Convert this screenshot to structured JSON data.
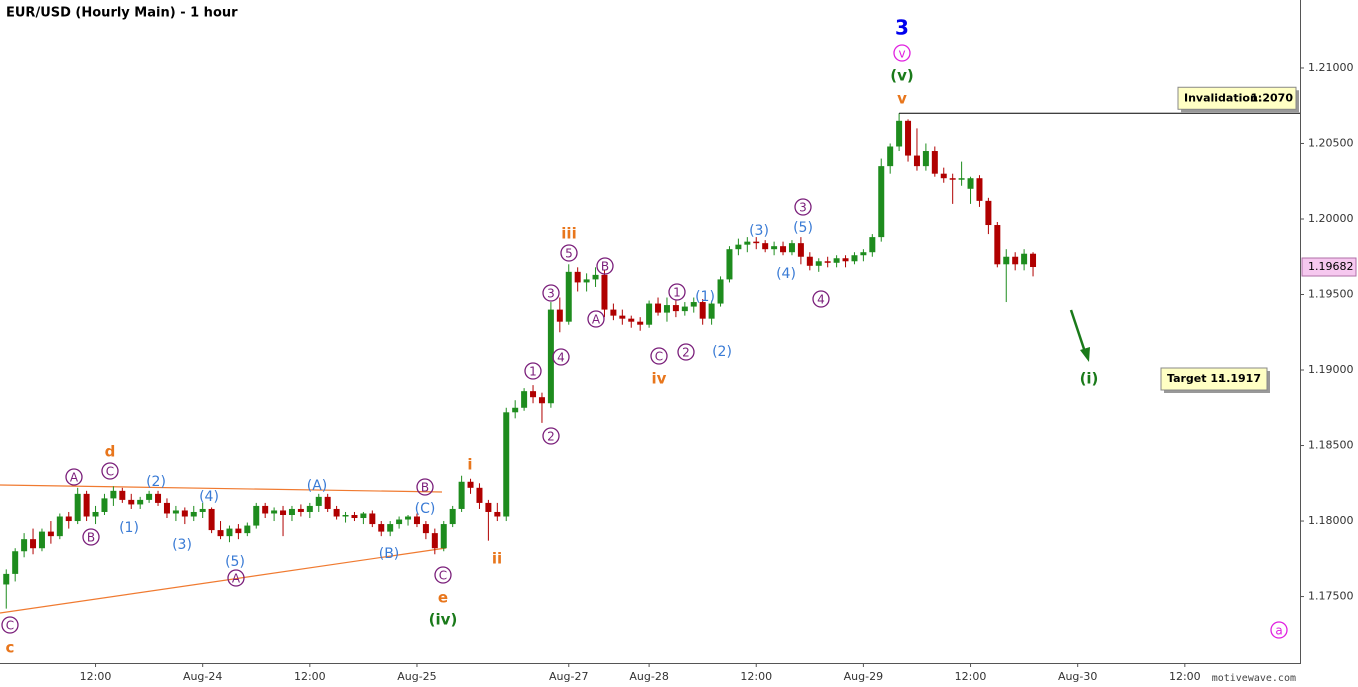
{
  "chart_data": {
    "type": "candlestick",
    "title": "EUR/USD (Hourly Main) - 1 hour",
    "watermark": "motivewave.com",
    "up_color": "#1e8c1e",
    "down_color": "#b00000",
    "open": [
      1.1758,
      1.1765,
      1.178,
      1.1788,
      1.1782,
      1.1793,
      1.179,
      1.1803,
      1.18,
      1.1818,
      1.1803,
      1.1806,
      1.1815,
      1.182,
      1.1814,
      1.1811,
      1.1814,
      1.1818,
      1.1812,
      1.1805,
      1.1807,
      1.1803,
      1.1806,
      1.1808,
      1.1794,
      1.179,
      1.1795,
      1.1792,
      1.1797,
      1.181,
      1.1805,
      1.1807,
      1.1804,
      1.1808,
      1.1806,
      1.181,
      1.1816,
      1.1808,
      1.1803,
      1.1804,
      1.1802,
      1.1805,
      1.1798,
      1.1793,
      1.1798,
      1.1801,
      1.1803,
      1.1798,
      1.1792,
      1.1782,
      1.1798,
      1.1808,
      1.1826,
      1.1822,
      1.1812,
      1.1806,
      1.1803,
      1.1872,
      1.1875,
      1.1886,
      1.1882,
      1.1878,
      1.194,
      1.1932,
      1.1965,
      1.1958,
      1.196,
      1.1963,
      1.194,
      1.1936,
      1.1934,
      1.1932,
      1.193,
      1.1944,
      1.1938,
      1.1943,
      1.1939,
      1.1942,
      1.1945,
      1.1934,
      1.1944,
      1.196,
      1.198,
      1.1983,
      1.1985,
      1.1984,
      1.198,
      1.1982,
      1.1978,
      1.1984,
      1.1975,
      1.1969,
      1.1972,
      1.1971,
      1.1974,
      1.1972,
      1.1976,
      1.1978,
      1.1988,
      1.2035,
      1.2048,
      1.2065,
      1.2042,
      1.2035,
      1.2045,
      1.203,
      1.2027,
      1.2026,
      1.202,
      1.2027,
      1.2012,
      1.1996,
      1.197,
      1.1975,
      1.197,
      1.1977
    ],
    "high": [
      1.1768,
      1.1782,
      1.1792,
      1.1795,
      1.1795,
      1.18,
      1.1805,
      1.1806,
      1.1822,
      1.182,
      1.181,
      1.1818,
      1.1823,
      1.1822,
      1.1818,
      1.1816,
      1.182,
      1.182,
      1.1815,
      1.181,
      1.1809,
      1.181,
      1.1812,
      1.1809,
      1.18,
      1.1797,
      1.1798,
      1.1799,
      1.1812,
      1.1812,
      1.1809,
      1.181,
      1.181,
      1.1811,
      1.1812,
      1.1818,
      1.1818,
      1.181,
      1.1806,
      1.1806,
      1.1806,
      1.1807,
      1.18,
      1.18,
      1.1803,
      1.1804,
      1.1805,
      1.18,
      1.1795,
      1.18,
      1.181,
      1.183,
      1.1828,
      1.1825,
      1.1814,
      1.1812,
      1.1875,
      1.188,
      1.1888,
      1.189,
      1.1885,
      1.1945,
      1.1948,
      1.197,
      1.1968,
      1.1964,
      1.1968,
      1.1966,
      1.1944,
      1.194,
      1.1936,
      1.1935,
      1.1946,
      1.1948,
      1.1948,
      1.1946,
      1.1945,
      1.1948,
      1.1947,
      1.1946,
      1.1962,
      1.1982,
      1.1987,
      1.1988,
      1.1988,
      1.1986,
      1.1985,
      1.1985,
      1.1986,
      1.1988,
      1.1978,
      1.1974,
      1.1975,
      1.1976,
      1.1976,
      1.1978,
      1.198,
      1.199,
      1.204,
      1.205,
      1.207,
      1.2066,
      1.206,
      1.205,
      1.2048,
      1.2034,
      1.203,
      1.2038,
      1.2028,
      1.2029,
      1.2014,
      1.1998,
      1.198,
      1.1978,
      1.198,
      1.1978
    ],
    "low": [
      1.1742,
      1.176,
      1.1776,
      1.1778,
      1.178,
      1.1785,
      1.1788,
      1.1795,
      1.1798,
      1.18,
      1.1798,
      1.1804,
      1.181,
      1.1812,
      1.1808,
      1.1808,
      1.1812,
      1.181,
      1.1802,
      1.18,
      1.1798,
      1.18,
      1.1802,
      1.1792,
      1.1788,
      1.1786,
      1.1788,
      1.179,
      1.1795,
      1.1802,
      1.18,
      1.179,
      1.18,
      1.1803,
      1.1802,
      1.1806,
      1.1806,
      1.1801,
      1.1799,
      1.18,
      1.1798,
      1.1796,
      1.179,
      1.179,
      1.1795,
      1.1797,
      1.1796,
      1.1788,
      1.1778,
      1.178,
      1.1796,
      1.1806,
      1.1818,
      1.1808,
      1.1787,
      1.18,
      1.18,
      1.1868,
      1.1873,
      1.1878,
      1.1865,
      1.1875,
      1.1925,
      1.193,
      1.1952,
      1.1952,
      1.1955,
      1.1935,
      1.1933,
      1.193,
      1.1928,
      1.1926,
      1.1928,
      1.1936,
      1.1932,
      1.1935,
      1.1936,
      1.1938,
      1.193,
      1.193,
      1.1942,
      1.1958,
      1.1976,
      1.1978,
      1.198,
      1.1978,
      1.1976,
      1.1976,
      1.1976,
      1.197,
      1.1966,
      1.1965,
      1.1968,
      1.1968,
      1.1968,
      1.197,
      1.1972,
      1.1975,
      1.1985,
      1.203,
      1.2045,
      1.2038,
      1.2032,
      1.2032,
      1.2028,
      1.2024,
      1.201,
      1.2022,
      1.201,
      1.2008,
      1.199,
      1.1968,
      1.1945,
      1.1966,
      1.1966,
      1.1962
    ],
    "close": [
      1.1765,
      1.178,
      1.1788,
      1.1782,
      1.1793,
      1.179,
      1.1803,
      1.18,
      1.1818,
      1.1803,
      1.1806,
      1.1815,
      1.182,
      1.1814,
      1.1811,
      1.1814,
      1.1818,
      1.1812,
      1.1805,
      1.1807,
      1.1803,
      1.1806,
      1.1808,
      1.1794,
      1.179,
      1.1795,
      1.1792,
      1.1797,
      1.181,
      1.1805,
      1.1807,
      1.1804,
      1.1808,
      1.1806,
      1.181,
      1.1816,
      1.1808,
      1.1803,
      1.1804,
      1.1802,
      1.1805,
      1.1798,
      1.1793,
      1.1798,
      1.1801,
      1.1803,
      1.1798,
      1.1792,
      1.1782,
      1.1798,
      1.1808,
      1.1826,
      1.1822,
      1.1812,
      1.1806,
      1.1803,
      1.1872,
      1.1875,
      1.1886,
      1.1882,
      1.1878,
      1.194,
      1.1932,
      1.1965,
      1.1958,
      1.196,
      1.1963,
      1.194,
      1.1936,
      1.1934,
      1.1932,
      1.193,
      1.1944,
      1.1938,
      1.1943,
      1.1939,
      1.1942,
      1.1945,
      1.1934,
      1.1944,
      1.196,
      1.198,
      1.1983,
      1.1985,
      1.1984,
      1.198,
      1.1982,
      1.1978,
      1.1984,
      1.1975,
      1.1969,
      1.1972,
      1.1971,
      1.1974,
      1.1972,
      1.1976,
      1.1978,
      1.1988,
      1.2035,
      1.2048,
      1.2065,
      1.2042,
      1.2035,
      1.2045,
      1.203,
      1.2027,
      1.2026,
      1.2027,
      1.2027,
      1.2012,
      1.1996,
      1.197,
      1.1975,
      1.197,
      1.1977,
      1.19682
    ],
    "last_price": 1.19682,
    "xlim": [
      -0.7,
      144.9
    ],
    "xticks": [
      {
        "value": 10,
        "label": "12:00"
      },
      {
        "value": 22,
        "label": "Aug-24"
      },
      {
        "value": 34,
        "label": "12:00"
      },
      {
        "value": 46,
        "label": "Aug-25"
      },
      {
        "value": 63,
        "label": "Aug-27"
      },
      {
        "value": 72,
        "label": "Aug-28"
      },
      {
        "value": 84,
        "label": "12:00"
      },
      {
        "value": 96,
        "label": "Aug-29"
      },
      {
        "value": 108,
        "label": "12:00"
      },
      {
        "value": 120,
        "label": "Aug-30"
      },
      {
        "value": 132,
        "label": "12:00"
      }
    ],
    "ylim": [
      1.1706,
      1.2145
    ],
    "yticks": [
      {
        "value": 1.175,
        "label": "1.17500"
      },
      {
        "value": 1.18,
        "label": "1.18000"
      },
      {
        "value": 1.185,
        "label": "1.18500"
      },
      {
        "value": 1.19,
        "label": "1.19000"
      },
      {
        "value": 1.195,
        "label": "1.19500"
      },
      {
        "value": 1.2,
        "label": "1.20000"
      },
      {
        "value": 1.205,
        "label": "1.20500"
      },
      {
        "value": 1.21,
        "label": "1.21000"
      }
    ],
    "invalidation": {
      "label": "Invalidation:",
      "value": 1.207,
      "value_label": "1.2070"
    },
    "target": {
      "label": "Target 1:",
      "value": 1.1917,
      "value_label": "1.1917"
    },
    "annotations": [
      {
        "text": "C",
        "color": "#7a1e7a",
        "circled": true
      },
      {
        "text": "c",
        "color": "#e8761c"
      },
      {
        "text": "A",
        "color": "#7a1e7a",
        "circled": true
      },
      {
        "text": "B",
        "color": "#7a1e7a",
        "circled": true
      },
      {
        "text": "d",
        "color": "#e8761c"
      },
      {
        "text": "C",
        "color": "#7a1e7a",
        "circled": true
      },
      {
        "text": "(2)",
        "color": "#3a7bd5"
      },
      {
        "text": "(1)",
        "color": "#3a7bd5"
      },
      {
        "text": "(4)",
        "color": "#3a7bd5"
      },
      {
        "text": "(3)",
        "color": "#3a7bd5"
      },
      {
        "text": "(5)",
        "color": "#3a7bd5"
      },
      {
        "text": "A",
        "color": "#7a1e7a",
        "circled": true
      },
      {
        "text": "(A)",
        "color": "#3a7bd5"
      },
      {
        "text": "(B)",
        "color": "#3a7bd5"
      },
      {
        "text": "B",
        "color": "#7a1e7a",
        "circled": true
      },
      {
        "text": "(C)",
        "color": "#3a7bd5"
      },
      {
        "text": "C",
        "color": "#7a1e7a",
        "circled": true
      },
      {
        "text": "e",
        "color": "#e8761c"
      },
      {
        "text": "(iv)",
        "color": "#1a7a1a"
      },
      {
        "text": "i",
        "color": "#e8761c"
      },
      {
        "text": "ii",
        "color": "#e8761c"
      },
      {
        "text": "1",
        "color": "#7a1e7a",
        "circled": true
      },
      {
        "text": "2",
        "color": "#7a1e7a",
        "circled": true
      },
      {
        "text": "3",
        "color": "#7a1e7a",
        "circled": true
      },
      {
        "text": "4",
        "color": "#7a1e7a",
        "circled": true
      },
      {
        "text": "5",
        "color": "#7a1e7a",
        "circled": true
      },
      {
        "text": "iii",
        "color": "#e8761c"
      },
      {
        "text": "A",
        "color": "#7a1e7a",
        "circled": true
      },
      {
        "text": "B",
        "color": "#7a1e7a",
        "circled": true
      },
      {
        "text": "C",
        "color": "#7a1e7a",
        "circled": true
      },
      {
        "text": "iv",
        "color": "#e8761c"
      },
      {
        "text": "1",
        "color": "#7a1e7a",
        "circled": true
      },
      {
        "text": "2",
        "color": "#7a1e7a",
        "circled": true
      },
      {
        "text": "(1)",
        "color": "#3a7bd5"
      },
      {
        "text": "(2)",
        "color": "#3a7bd5"
      },
      {
        "text": "(3)",
        "color": "#3a7bd5"
      },
      {
        "text": "(4)",
        "color": "#3a7bd5"
      },
      {
        "text": "(5)",
        "color": "#3a7bd5"
      },
      {
        "text": "3",
        "color": "#7a1e7a",
        "circled": true
      },
      {
        "text": "4",
        "color": "#7a1e7a",
        "circled": true
      },
      {
        "text": "v",
        "color": "#e8761c"
      },
      {
        "text": "(v)",
        "color": "#1a7a1a"
      },
      {
        "text": "v",
        "color": "#e020e0",
        "circled": true
      },
      {
        "text": "3",
        "color": "#0000ee"
      },
      {
        "text": "(i)",
        "color": "#1a7a1a"
      },
      {
        "text": "a",
        "color": "#e020e0",
        "circled": true
      }
    ]
  }
}
